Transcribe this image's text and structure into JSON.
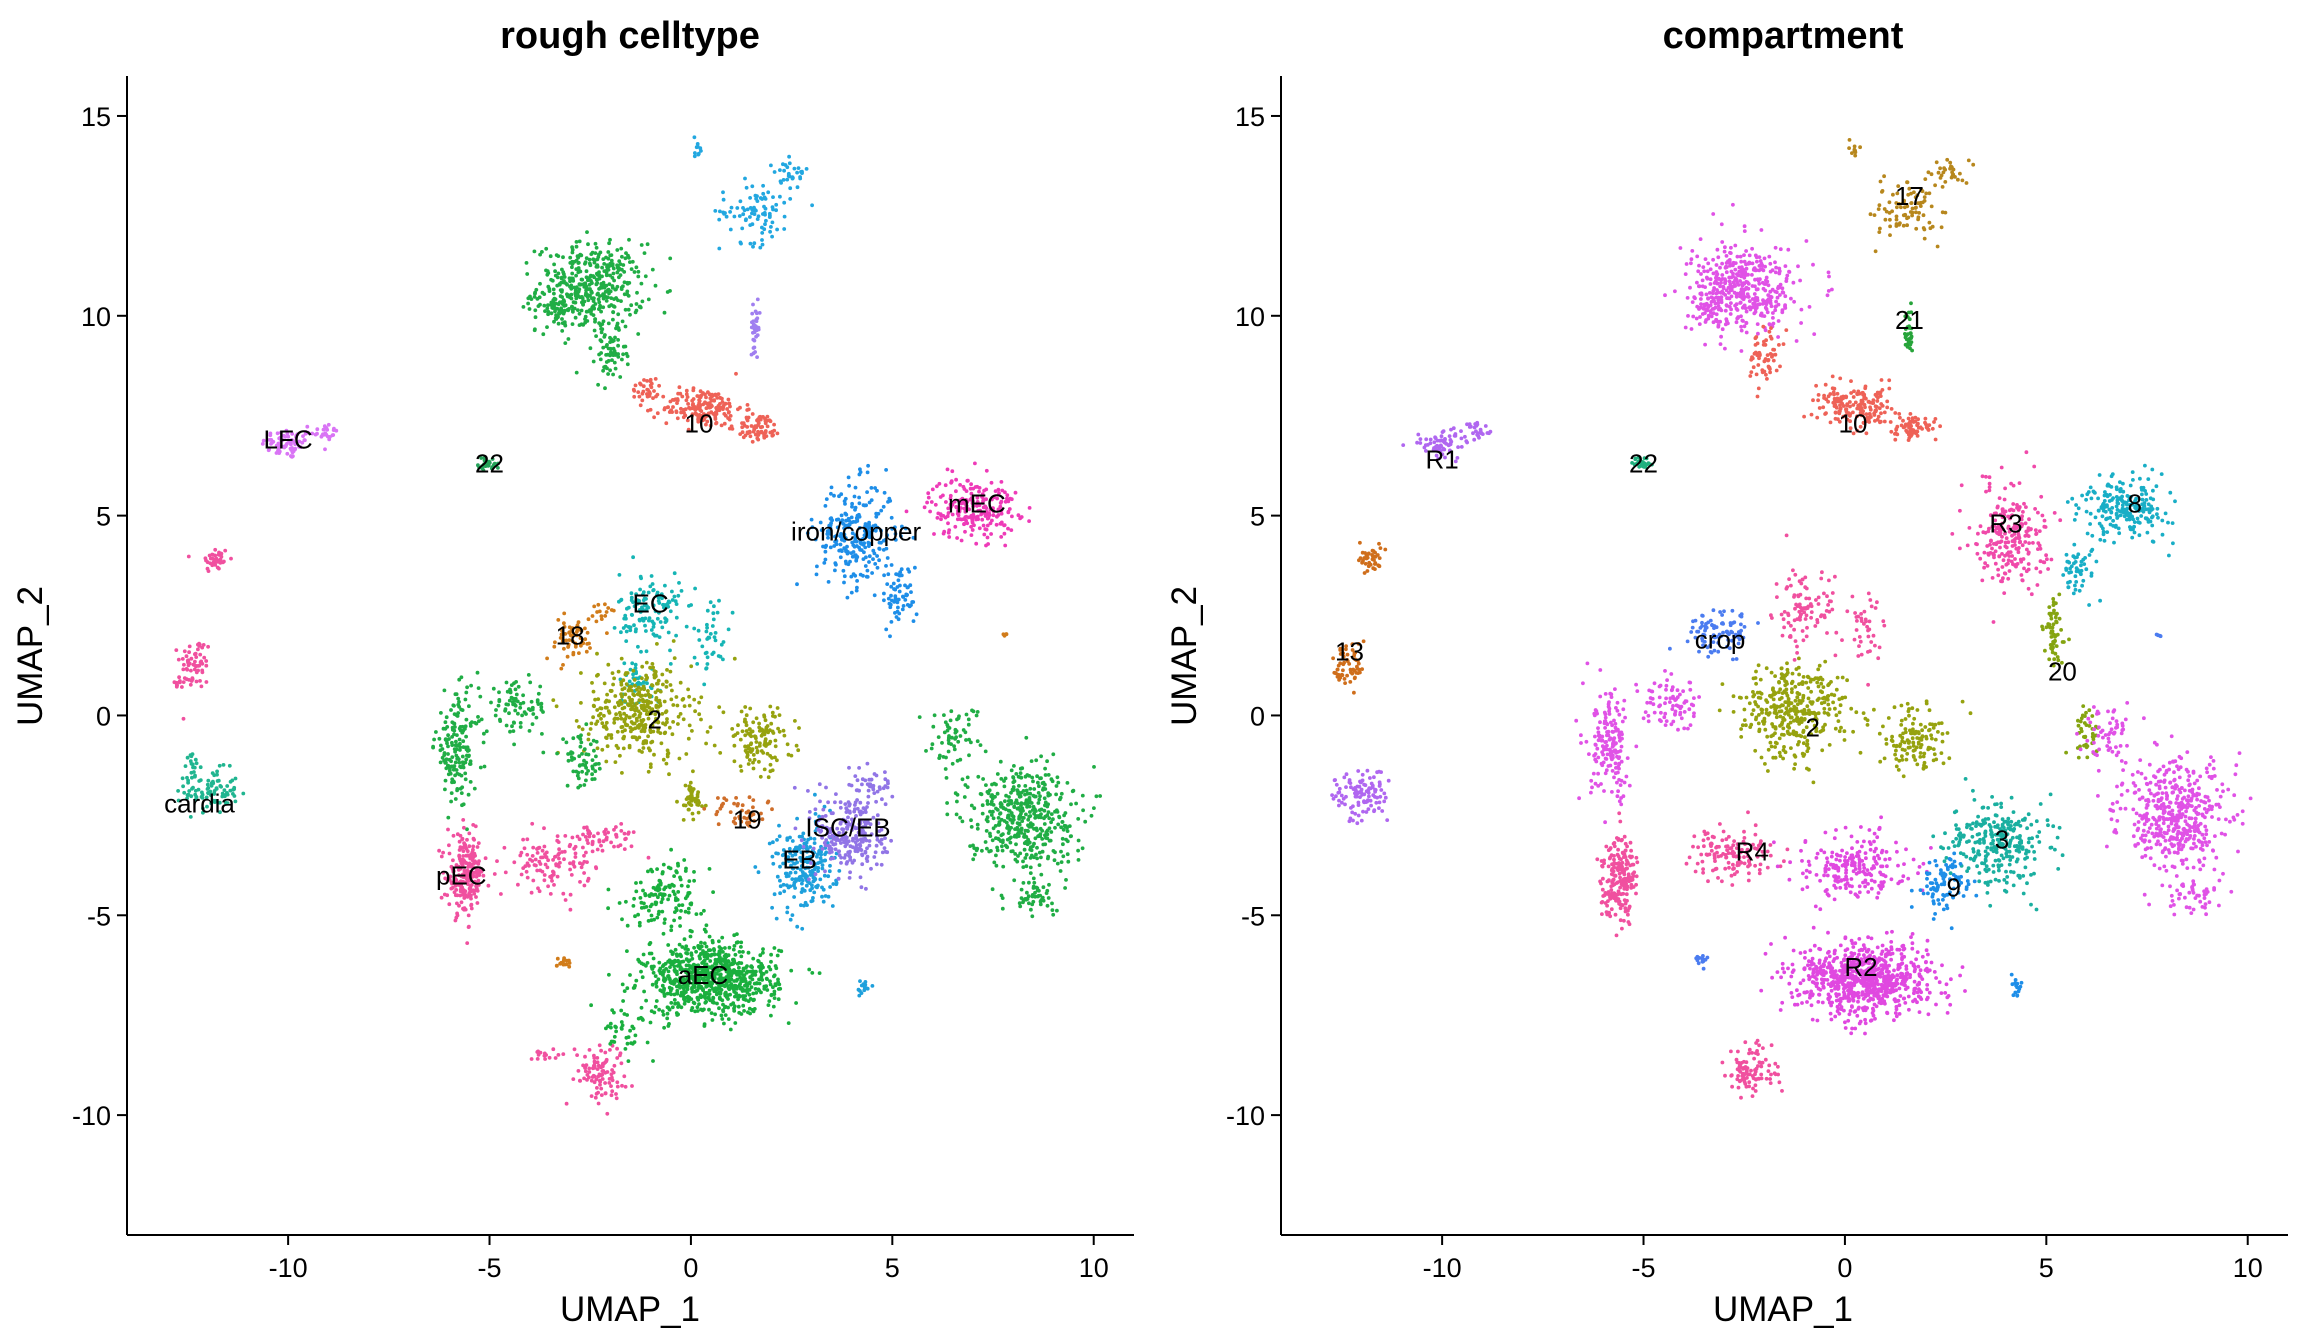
{
  "charts": [
    {
      "type": "scatter",
      "title": "rough celltype",
      "xlabel": "UMAP_1",
      "ylabel": "UMAP_2",
      "xlim": [
        -14,
        11
      ],
      "ylim": [
        -13,
        16
      ],
      "xticks": [
        -10,
        -5,
        0,
        5,
        10
      ],
      "yticks": [
        -10,
        -5,
        0,
        5,
        10,
        15
      ],
      "xtick_labels": [
        "-10",
        "-5",
        "0",
        "5",
        "10"
      ],
      "ytick_labels": [
        "-10",
        "-5",
        "0",
        "5",
        "10",
        "15"
      ],
      "grid": false,
      "legend": "none",
      "clusters": [
        {
          "label": "LFC",
          "x": -10.0,
          "y": 6.9,
          "color": "#D974F5",
          "pts": [
            [
              -10,
              6.8,
              0.6,
              0.35,
              70
            ],
            [
              -9.1,
              7.1,
              0.3,
              0.2,
              25
            ]
          ]
        },
        {
          "label": "",
          "x": -11.8,
          "y": 3.9,
          "color": "#F0509F",
          "pts": [
            [
              -11.8,
              3.9,
              0.3,
              0.3,
              40
            ],
            [
              -12.3,
              1.3,
              0.35,
              0.6,
              60
            ],
            [
              -12.7,
              0.8,
              0.15,
              0.2,
              10
            ]
          ]
        },
        {
          "label": "cardia",
          "x": -12.2,
          "y": -2.2,
          "color": "#20B590",
          "pts": [
            [
              -11.9,
              -1.9,
              0.6,
              0.5,
              90
            ],
            [
              -12.4,
              -1.3,
              0.2,
              0.3,
              20
            ]
          ]
        },
        {
          "label": "22",
          "x": -5.0,
          "y": 6.3,
          "color": "#25A35A",
          "pts": [
            [
              -5.0,
              6.3,
              0.25,
              0.15,
              30
            ]
          ]
        },
        {
          "label": "",
          "x": -2.4,
          "y": 10.5,
          "color": "#20AD45",
          "pts": [
            [
              -2.5,
              10.7,
              1.2,
              1.0,
              420
            ],
            [
              -2.0,
              9.0,
              0.35,
              0.6,
              60
            ],
            [
              -3.4,
              10.2,
              0.4,
              0.4,
              50
            ]
          ]
        },
        {
          "label": "10",
          "x": 0.2,
          "y": 7.3,
          "color": "#EE6257",
          "pts": [
            [
              0.3,
              7.7,
              0.9,
              0.45,
              180
            ],
            [
              1.7,
              7.2,
              0.5,
              0.3,
              70
            ],
            [
              -1.1,
              8.2,
              0.35,
              0.3,
              30
            ]
          ]
        },
        {
          "label": "",
          "x": 1.6,
          "y": 12.7,
          "color": "#22A7E0",
          "pts": [
            [
              1.6,
              12.6,
              0.8,
              0.7,
              90
            ],
            [
              0.2,
              14.2,
              0.1,
              0.3,
              10
            ],
            [
              2.5,
              13.6,
              0.4,
              0.3,
              30
            ]
          ]
        },
        {
          "label": "",
          "x": 1.6,
          "y": 9.7,
          "color": "#A07FF0",
          "pts": [
            [
              1.6,
              9.7,
              0.1,
              0.5,
              35
            ]
          ]
        },
        {
          "label": "iron/copper",
          "x": 4.1,
          "y": 4.6,
          "color": "#1E8EE8",
          "pts": [
            [
              4.1,
              4.5,
              0.9,
              1.2,
              260
            ],
            [
              5.2,
              3.0,
              0.4,
              0.7,
              60
            ]
          ]
        },
        {
          "label": "mEC",
          "x": 7.1,
          "y": 5.3,
          "color": "#EE3BB8",
          "pts": [
            [
              7.0,
              5.2,
              1.0,
              0.7,
              220
            ]
          ]
        },
        {
          "label": "EC",
          "x": -1.0,
          "y": 2.8,
          "color": "#16B5B5",
          "pts": [
            [
              -1.0,
              2.6,
              0.7,
              0.9,
              130
            ],
            [
              0.5,
              2.0,
              0.4,
              0.9,
              40
            ],
            [
              -1.3,
              0.8,
              0.5,
              0.5,
              40
            ]
          ]
        },
        {
          "label": "18",
          "x": -3.0,
          "y": 2.0,
          "color": "#D17C1A",
          "pts": [
            [
              -3.0,
              1.9,
              0.6,
              0.5,
              60
            ],
            [
              -2.1,
              2.6,
              0.3,
              0.2,
              15
            ]
          ]
        },
        {
          "label": "2",
          "x": -0.9,
          "y": -0.1,
          "color": "#96A20F",
          "pts": [
            [
              -1.3,
              0.1,
              1.2,
              1.1,
              360
            ],
            [
              1.7,
              -0.6,
              0.8,
              0.7,
              130
            ],
            [
              0.0,
              -2.1,
              0.3,
              0.5,
              50
            ]
          ]
        },
        {
          "label": "",
          "x": -5.5,
          "y": -0.8,
          "color": "#20AD45",
          "pts": [
            [
              -5.8,
              -0.8,
              0.5,
              1.2,
              170
            ],
            [
              -4.3,
              0.2,
              0.7,
              0.6,
              80
            ],
            [
              -2.7,
              -1.2,
              0.5,
              0.6,
              60
            ]
          ]
        },
        {
          "label": "pEC",
          "x": -5.7,
          "y": -4.0,
          "color": "#F0509F",
          "pts": [
            [
              -5.6,
              -4.0,
              0.4,
              0.9,
              220
            ],
            [
              -3.5,
              -3.7,
              0.9,
              0.6,
              110
            ],
            [
              -2.2,
              -3.1,
              0.8,
              0.4,
              60
            ]
          ]
        },
        {
          "label": "",
          "x": -2.5,
          "y": -9.0,
          "color": "#F0509F",
          "pts": [
            [
              -2.3,
              -8.9,
              0.6,
              0.6,
              100
            ],
            [
              -3.6,
              -8.5,
              0.3,
              0.2,
              15
            ]
          ]
        },
        {
          "label": "",
          "x": -3.1,
          "y": -6.2,
          "color": "#D17C1A",
          "pts": [
            [
              -3.1,
              -6.2,
              0.2,
              0.15,
              15
            ]
          ]
        },
        {
          "label": "aEC",
          "x": 0.3,
          "y": -6.5,
          "color": "#1AAF3E",
          "pts": [
            [
              0.5,
              -6.6,
              1.5,
              0.8,
              800
            ],
            [
              -0.6,
              -4.5,
              0.9,
              0.8,
              140
            ],
            [
              -1.6,
              -7.9,
              0.6,
              0.5,
              40
            ]
          ]
        },
        {
          "label": "19",
          "x": 1.4,
          "y": -2.6,
          "color": "#CF6E2A",
          "pts": [
            [
              1.2,
              -2.4,
              0.6,
              0.4,
              45
            ]
          ]
        },
        {
          "label": "EB",
          "x": 2.7,
          "y": -3.6,
          "color": "#1EA0DC",
          "pts": [
            [
              2.8,
              -3.8,
              0.7,
              1.0,
              230
            ]
          ]
        },
        {
          "label": "ISC/EB",
          "x": 3.9,
          "y": -2.8,
          "color": "#9175E6",
          "pts": [
            [
              4.0,
              -3.0,
              0.8,
              1.0,
              250
            ],
            [
              4.4,
              -1.7,
              0.6,
              0.4,
              40
            ]
          ]
        },
        {
          "label": "",
          "x": 4.3,
          "y": -6.8,
          "color": "#1EA0DC",
          "pts": [
            [
              4.3,
              -6.8,
              0.15,
              0.2,
              15
            ]
          ]
        },
        {
          "label": "",
          "x": 7.8,
          "y": -2.4,
          "color": "#20AD45",
          "pts": [
            [
              8.2,
              -2.5,
              1.2,
              1.2,
              460
            ],
            [
              6.5,
              -0.5,
              0.6,
              0.7,
              60
            ],
            [
              8.6,
              -4.5,
              0.6,
              0.4,
              50
            ]
          ]
        },
        {
          "label": "",
          "x": 7.8,
          "y": 2.0,
          "color": "#D17C1A",
          "pts": [
            [
              7.8,
              2.0,
              0.05,
              0.05,
              4
            ]
          ]
        }
      ]
    },
    {
      "type": "scatter",
      "title": "compartment",
      "xlabel": "UMAP_1",
      "ylabel": "UMAP_2",
      "xlim": [
        -14,
        11
      ],
      "ylim": [
        -13,
        16
      ],
      "xticks": [
        -10,
        -5,
        0,
        5,
        10
      ],
      "yticks": [
        -10,
        -5,
        0,
        5,
        10,
        15
      ],
      "xtick_labels": [
        "-10",
        "-5",
        "0",
        "5",
        "10"
      ],
      "ytick_labels": [
        "-10",
        "-5",
        "0",
        "5",
        "10",
        "15"
      ],
      "grid": false,
      "legend": "none",
      "clusters": [
        {
          "label": "R1",
          "x": -10.0,
          "y": 6.4,
          "color": "#B067F0",
          "pts": [
            [
              -10,
              6.8,
              0.6,
              0.35,
              70
            ],
            [
              -9.1,
              7.1,
              0.3,
              0.2,
              25
            ],
            [
              -12.0,
              -2.0,
              0.6,
              0.6,
              110
            ]
          ]
        },
        {
          "label": "13",
          "x": -12.3,
          "y": 1.6,
          "color": "#CF6E1B",
          "pts": [
            [
              -11.8,
              3.9,
              0.3,
              0.3,
              40
            ],
            [
              -12.3,
              1.3,
              0.35,
              0.6,
              60
            ]
          ]
        },
        {
          "label": "22",
          "x": -5.0,
          "y": 6.3,
          "color": "#1FB07E",
          "pts": [
            [
              -5.0,
              6.3,
              0.25,
              0.15,
              30
            ]
          ]
        },
        {
          "label": "",
          "x": -2.4,
          "y": 10.5,
          "color": "#E052E6",
          "pts": [
            [
              -2.5,
              10.7,
              1.2,
              1.0,
              420
            ],
            [
              -3.4,
              10.2,
              0.4,
              0.4,
              50
            ]
          ]
        },
        {
          "label": "10",
          "x": 0.2,
          "y": 7.3,
          "color": "#EE6257",
          "pts": [
            [
              0.3,
              7.7,
              0.9,
              0.45,
              180
            ],
            [
              1.7,
              7.2,
              0.5,
              0.3,
              70
            ],
            [
              -2.0,
              9.0,
              0.35,
              0.6,
              60
            ]
          ]
        },
        {
          "label": "17",
          "x": 1.6,
          "y": 13.0,
          "color": "#B7871D",
          "pts": [
            [
              1.6,
              12.6,
              0.8,
              0.7,
              90
            ],
            [
              0.2,
              14.2,
              0.1,
              0.3,
              10
            ],
            [
              2.5,
              13.6,
              0.4,
              0.3,
              30
            ]
          ]
        },
        {
          "label": "21",
          "x": 1.6,
          "y": 9.9,
          "color": "#27A43A",
          "pts": [
            [
              1.6,
              9.7,
              0.1,
              0.5,
              35
            ]
          ]
        },
        {
          "label": "R3",
          "x": 4.0,
          "y": 4.8,
          "color": "#F04AAA",
          "pts": [
            [
              4.1,
              4.5,
              0.8,
              1.2,
              240
            ]
          ]
        },
        {
          "label": "8",
          "x": 7.2,
          "y": 5.3,
          "color": "#19AEC6",
          "pts": [
            [
              7.0,
              5.2,
              1.0,
              0.7,
              220
            ],
            [
              5.8,
              3.7,
              0.4,
              0.6,
              50
            ]
          ]
        },
        {
          "label": "20",
          "x": 5.4,
          "y": 1.1,
          "color": "#85A411",
          "pts": [
            [
              5.2,
              2.0,
              0.25,
              0.8,
              60
            ],
            [
              6.0,
              -0.4,
              0.3,
              0.6,
              40
            ]
          ]
        },
        {
          "label": "crop",
          "x": -3.1,
          "y": 1.9,
          "color": "#4B7CF0",
          "pts": [
            [
              -3.1,
              2.1,
              0.7,
              0.5,
              90
            ],
            [
              -3.5,
              -6.1,
              0.2,
              0.15,
              15
            ]
          ]
        },
        {
          "label": "2",
          "x": -0.8,
          "y": -0.3,
          "color": "#96A20F",
          "pts": [
            [
              -1.3,
              0.1,
              1.2,
              1.1,
              360
            ],
            [
              1.7,
              -0.6,
              0.8,
              0.7,
              130
            ]
          ]
        },
        {
          "label": "",
          "x": -1.0,
          "y": 2.6,
          "color": "#F0509F",
          "pts": [
            [
              -1.0,
              2.6,
              0.7,
              0.9,
              100
            ],
            [
              0.5,
              2.0,
              0.4,
              0.9,
              40
            ]
          ]
        },
        {
          "label": "",
          "x": -5.5,
          "y": -0.8,
          "color": "#E052E6",
          "pts": [
            [
              -5.8,
              -0.8,
              0.5,
              1.2,
              170
            ],
            [
              -4.3,
              0.2,
              0.7,
              0.6,
              80
            ]
          ]
        },
        {
          "label": "R4",
          "x": -2.3,
          "y": -3.4,
          "color": "#F0509F",
          "pts": [
            [
              -5.6,
              -4.0,
              0.4,
              0.9,
              220
            ],
            [
              -2.8,
              -3.5,
              0.9,
              0.6,
              130
            ],
            [
              -2.3,
              -8.9,
              0.6,
              0.6,
              100
            ]
          ]
        },
        {
          "label": "R2",
          "x": 0.4,
          "y": -6.3,
          "color": "#E048E0",
          "pts": [
            [
              0.5,
              -6.6,
              1.5,
              0.8,
              800
            ],
            [
              0.3,
              -3.8,
              1.2,
              0.8,
              220
            ]
          ]
        },
        {
          "label": "3",
          "x": 3.9,
          "y": -3.1,
          "color": "#1AAFA0",
          "pts": [
            [
              3.8,
              -3.2,
              1.1,
              1.0,
              280
            ]
          ]
        },
        {
          "label": "9",
          "x": 2.7,
          "y": -4.3,
          "color": "#1E8EE8",
          "pts": [
            [
              2.5,
              -4.2,
              0.6,
              0.6,
              90
            ],
            [
              4.3,
              -6.8,
              0.15,
              0.2,
              15
            ]
          ]
        },
        {
          "label": "",
          "x": 7.8,
          "y": -2.4,
          "color": "#E052E6",
          "pts": [
            [
              8.2,
              -2.5,
              1.2,
              1.2,
              460
            ],
            [
              6.5,
              -0.5,
              0.6,
              0.7,
              60
            ],
            [
              8.6,
              -4.5,
              0.6,
              0.4,
              50
            ]
          ]
        },
        {
          "label": "",
          "x": 7.8,
          "y": 2.0,
          "color": "#4B7CF0",
          "pts": [
            [
              7.8,
              2.0,
              0.05,
              0.05,
              4
            ]
          ]
        }
      ]
    }
  ]
}
